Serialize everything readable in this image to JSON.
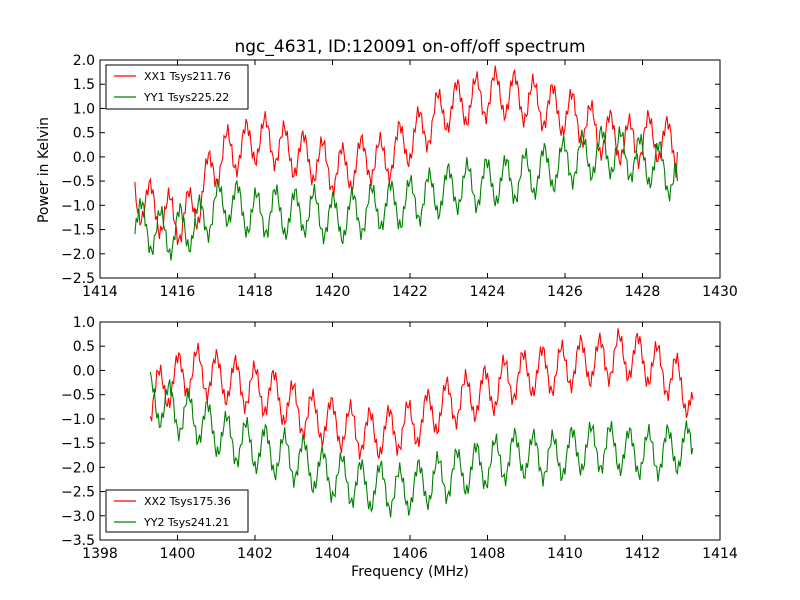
{
  "figure": {
    "title": "ngc_4631, ID:120091 on-off/off spectrum",
    "xlabel": "Frequency (MHz)",
    "ylabel": "Power in Kelvin"
  },
  "chart_data": [
    {
      "type": "line",
      "title": "ngc_4631, ID:120091 on-off/off spectrum",
      "xlabel": "",
      "ylabel": "Power in Kelvin",
      "xlim": [
        1414,
        1430
      ],
      "ylim": [
        -2.5,
        2.0
      ],
      "xticks": [
        "1414",
        "1416",
        "1418",
        "1420",
        "1422",
        "1424",
        "1426",
        "1428",
        "1430"
      ],
      "yticks": [
        "2.0",
        "1.5",
        "1.0",
        "0.5",
        "0.0",
        "−0.5",
        "−1.0",
        "−1.5",
        "−2.0",
        "−2.5"
      ],
      "legend_position": "top-left",
      "series": [
        {
          "name": "XX1 Tsys211.76",
          "color": "#ff0000",
          "x": [
            1414.9,
            1415.3,
            1415.7,
            1416.1,
            1416.5,
            1416.9,
            1417.3,
            1417.7,
            1418.1,
            1418.5,
            1418.9,
            1419.3,
            1419.7,
            1420.1,
            1420.5,
            1420.9,
            1421.3,
            1421.7,
            1422.1,
            1422.5,
            1422.9,
            1423.3,
            1423.7,
            1424.1,
            1424.5,
            1424.9,
            1425.3,
            1425.7,
            1426.1,
            1426.5,
            1426.9,
            1427.3,
            1427.7,
            1428.1,
            1428.5,
            1428.9
          ],
          "values": [
            -0.8,
            -1.0,
            -1.2,
            -1.3,
            -1.0,
            -0.2,
            0.1,
            0.2,
            0.4,
            0.3,
            0.1,
            0.0,
            -0.1,
            -0.3,
            -0.2,
            0.0,
            -0.1,
            0.2,
            0.4,
            0.7,
            1.0,
            1.1,
            1.2,
            1.3,
            1.3,
            1.2,
            1.1,
            1.0,
            0.9,
            0.7,
            0.5,
            0.4,
            0.3,
            0.4,
            0.4,
            0.1
          ]
        },
        {
          "name": "YY1 Tsys225.22",
          "color": "#008000",
          "x": [
            1414.9,
            1415.3,
            1415.7,
            1416.1,
            1416.5,
            1416.9,
            1417.3,
            1417.7,
            1418.1,
            1418.5,
            1418.9,
            1419.3,
            1419.7,
            1420.1,
            1420.5,
            1420.9,
            1421.3,
            1421.7,
            1422.1,
            1422.5,
            1422.9,
            1423.3,
            1423.7,
            1424.1,
            1424.5,
            1424.9,
            1425.3,
            1425.7,
            1426.1,
            1426.5,
            1426.9,
            1427.3,
            1427.7,
            1428.1,
            1428.5,
            1428.9
          ],
          "values": [
            -1.3,
            -1.5,
            -1.6,
            -1.5,
            -1.4,
            -1.1,
            -0.9,
            -1.1,
            -1.2,
            -1.1,
            -1.2,
            -1.1,
            -1.2,
            -1.3,
            -1.2,
            -1.1,
            -1.0,
            -1.0,
            -0.9,
            -0.8,
            -0.7,
            -0.6,
            -0.6,
            -0.5,
            -0.5,
            -0.4,
            -0.3,
            -0.2,
            -0.1,
            0.0,
            0.1,
            0.1,
            0.0,
            -0.1,
            -0.2,
            -0.5
          ]
        }
      ]
    },
    {
      "type": "line",
      "title": "",
      "xlabel": "Frequency (MHz)",
      "ylabel": "",
      "xlim": [
        1398,
        1414
      ],
      "ylim": [
        -3.5,
        1.0
      ],
      "xticks": [
        "1398",
        "1400",
        "1402",
        "1404",
        "1406",
        "1408",
        "1410",
        "1412",
        "1414"
      ],
      "yticks": [
        "1.0",
        "0.5",
        "0.0",
        "−0.5",
        "−1.0",
        "−1.5",
        "−2.0",
        "−2.5",
        "−3.0",
        "−3.5"
      ],
      "legend_position": "bottom-left",
      "series": [
        {
          "name": "XX2 Tsys175.36",
          "color": "#ff0000",
          "x": [
            1399.3,
            1399.7,
            1400.1,
            1400.5,
            1400.9,
            1401.3,
            1401.7,
            1402.1,
            1402.5,
            1402.9,
            1403.3,
            1403.7,
            1404.1,
            1404.5,
            1404.9,
            1405.3,
            1405.7,
            1406.1,
            1406.5,
            1406.9,
            1407.3,
            1407.7,
            1408.1,
            1408.5,
            1408.9,
            1409.3,
            1409.7,
            1410.1,
            1410.5,
            1410.9,
            1411.3,
            1411.7,
            1412.1,
            1412.5,
            1412.9,
            1413.3
          ],
          "values": [
            -0.6,
            -0.3,
            -0.1,
            0.0,
            -0.1,
            -0.2,
            -0.3,
            -0.4,
            -0.5,
            -0.7,
            -0.9,
            -1.0,
            -1.1,
            -1.2,
            -1.3,
            -1.3,
            -1.2,
            -1.1,
            -0.9,
            -0.7,
            -0.6,
            -0.5,
            -0.4,
            -0.2,
            -0.1,
            0.0,
            0.0,
            0.1,
            0.2,
            0.2,
            0.3,
            0.3,
            0.2,
            0.0,
            -0.2,
            -0.6
          ]
        },
        {
          "name": "YY2 Tsys241.21",
          "color": "#008000",
          "x": [
            1399.3,
            1399.7,
            1400.1,
            1400.5,
            1400.9,
            1401.3,
            1401.7,
            1402.1,
            1402.5,
            1402.9,
            1403.3,
            1403.7,
            1404.1,
            1404.5,
            1404.9,
            1405.3,
            1405.7,
            1406.1,
            1406.5,
            1406.9,
            1407.3,
            1407.7,
            1408.1,
            1408.5,
            1408.9,
            1409.3,
            1409.7,
            1410.1,
            1410.5,
            1410.9,
            1411.3,
            1411.7,
            1412.1,
            1412.5,
            1412.9,
            1413.3
          ],
          "values": [
            -0.6,
            -0.7,
            -0.9,
            -1.0,
            -1.2,
            -1.4,
            -1.5,
            -1.6,
            -1.7,
            -1.8,
            -1.9,
            -2.1,
            -2.2,
            -2.3,
            -2.4,
            -2.4,
            -2.5,
            -2.4,
            -2.3,
            -2.2,
            -2.1,
            -2.0,
            -1.9,
            -1.8,
            -1.7,
            -1.8,
            -1.8,
            -1.7,
            -1.6,
            -1.6,
            -1.6,
            -1.7,
            -1.7,
            -1.7,
            -1.6,
            -1.6
          ]
        }
      ]
    }
  ]
}
